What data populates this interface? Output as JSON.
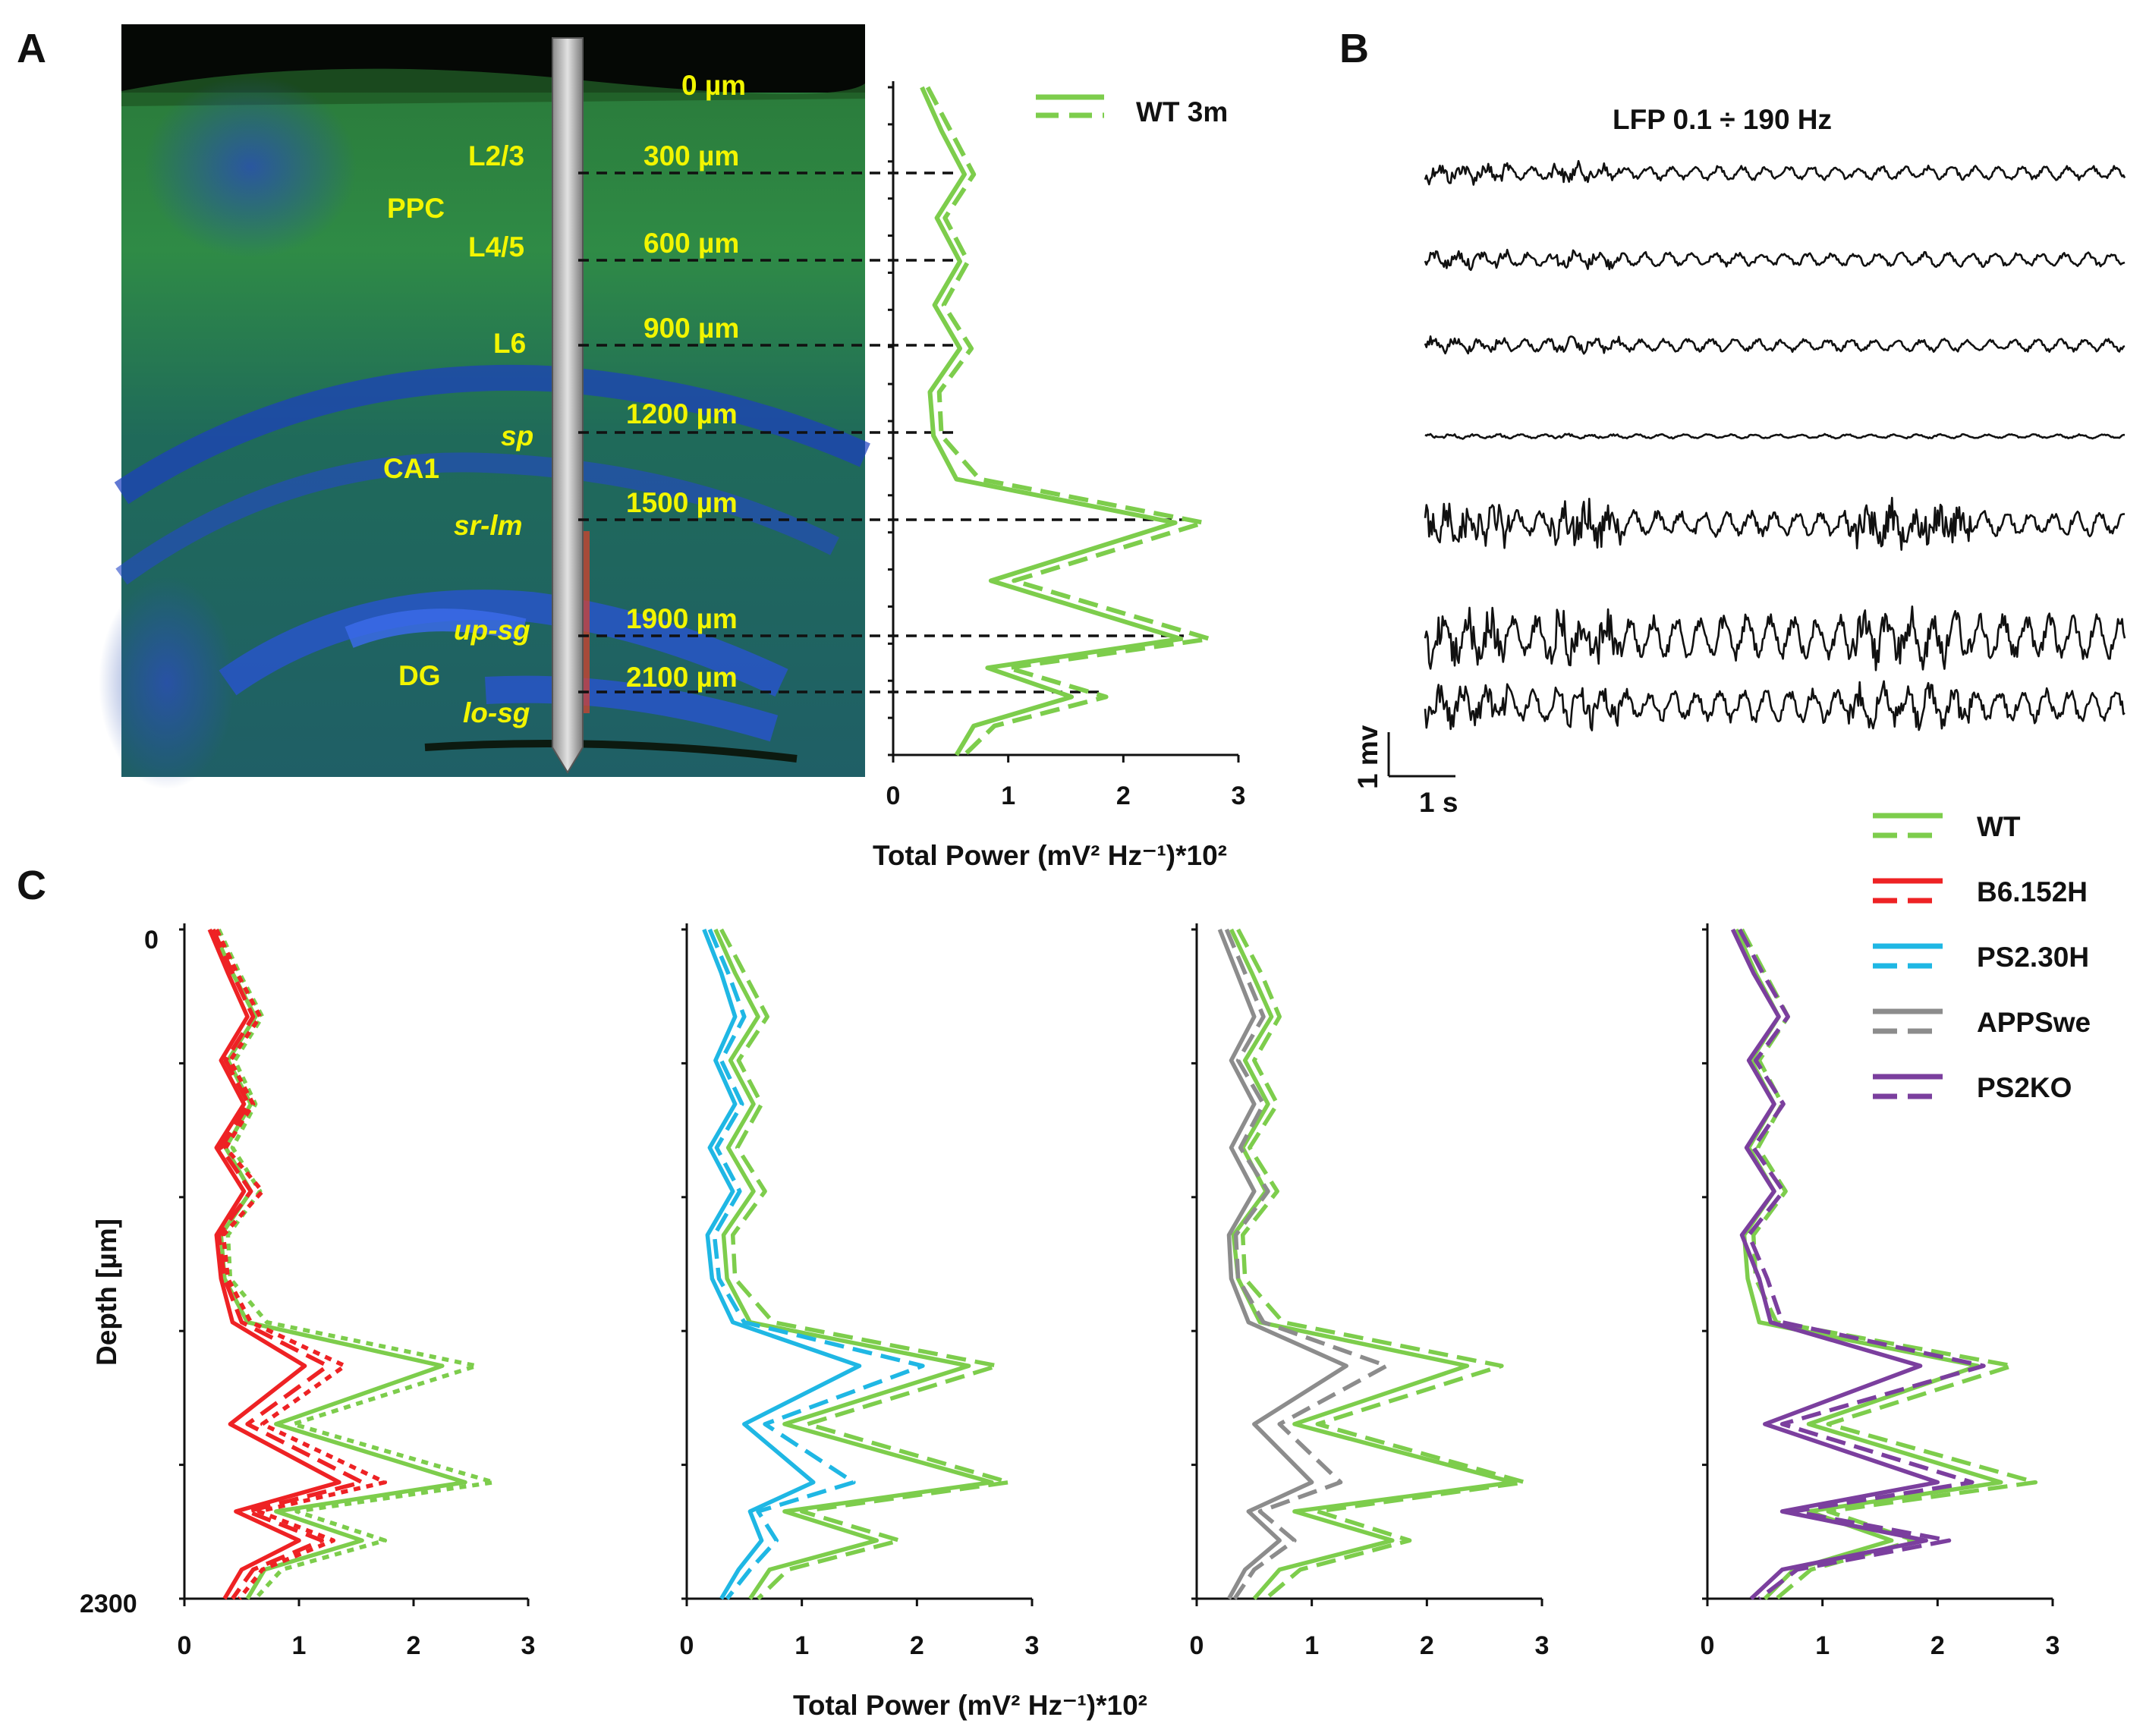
{
  "panels": {
    "a": "A",
    "b": "B",
    "c": "C"
  },
  "colors": {
    "WT": "#7dcd4c",
    "B6.152H": "#ee2224",
    "PS2.30H": "#1fb7e4",
    "APPSwe": "#8c8c8c",
    "PS2KO": "#7b3f9e"
  },
  "histology": {
    "region_labels": [
      "L2/3",
      "PPC",
      "L4/5",
      "L6",
      "CA1"
    ],
    "layer_labels_italic": [
      "sp",
      "sr-lm",
      "up-sg",
      "lo-sg"
    ],
    "dg_label": "DG",
    "depth_labels": [
      "0 µm",
      "300 µm",
      "600 µm",
      "900 µm",
      "1200 µm",
      "1500 µm",
      "1900 µm",
      "2100 µm"
    ]
  },
  "panel_b": {
    "title": "LFP 0.1 ÷ 190 Hz",
    "scale_v": "1 mv",
    "scale_t": "1 s"
  },
  "legend_a": {
    "label": "WT 3m"
  },
  "legend_c": [
    "WT",
    "B6.152H",
    "PS2.30H",
    "APPSwe",
    "PS2KO"
  ],
  "chart_data": [
    {
      "id": "panel-a",
      "type": "line",
      "xlabel": "Total Power (mV² Hz⁻¹)*10²",
      "xlim": [
        0,
        3
      ],
      "ylim": [
        0,
        2300
      ],
      "xticks": [
        "0",
        "1",
        "2",
        "3"
      ],
      "depth": [
        0,
        150,
        300,
        450,
        600,
        750,
        900,
        1050,
        1200,
        1350,
        1500,
        1700,
        1900,
        2000,
        2100,
        2200,
        2300
      ],
      "series": [
        {
          "name": "WT 3m",
          "style": "solid",
          "values": [
            0.25,
            0.42,
            0.62,
            0.38,
            0.58,
            0.36,
            0.58,
            0.32,
            0.35,
            0.55,
            2.45,
            0.85,
            2.5,
            0.82,
            1.55,
            0.7,
            0.55
          ]
        },
        {
          "name": "WT 3m",
          "style": "dashed",
          "values": [
            0.3,
            0.5,
            0.7,
            0.45,
            0.65,
            0.44,
            0.68,
            0.4,
            0.42,
            0.75,
            2.7,
            1.05,
            2.75,
            1.0,
            1.85,
            0.88,
            0.62
          ]
        }
      ]
    },
    {
      "id": "panel-c-1",
      "type": "line",
      "xlim": [
        0,
        3
      ],
      "ylim": [
        0,
        2300
      ],
      "xticks": [
        "0",
        "1",
        "2",
        "3"
      ],
      "depth": [
        0,
        150,
        300,
        450,
        600,
        750,
        900,
        1050,
        1200,
        1350,
        1500,
        1700,
        1900,
        2000,
        2100,
        2200,
        2300
      ],
      "series": [
        {
          "name": "WT",
          "style": "solid",
          "values": [
            0.25,
            0.42,
            0.62,
            0.38,
            0.58,
            0.36,
            0.58,
            0.32,
            0.35,
            0.55,
            2.25,
            0.8,
            2.45,
            0.8,
            1.55,
            0.7,
            0.55
          ]
        },
        {
          "name": "WT",
          "style": "dotted",
          "values": [
            0.3,
            0.48,
            0.68,
            0.44,
            0.62,
            0.42,
            0.66,
            0.38,
            0.4,
            0.72,
            2.55,
            0.95,
            2.7,
            0.98,
            1.75,
            0.85,
            0.62
          ]
        },
        {
          "name": "B6.152H",
          "style": "solid",
          "values": [
            0.22,
            0.38,
            0.55,
            0.32,
            0.52,
            0.28,
            0.52,
            0.28,
            0.32,
            0.42,
            1.05,
            0.4,
            1.35,
            0.45,
            1.0,
            0.5,
            0.35
          ]
        },
        {
          "name": "B6.152H",
          "style": "dashed",
          "values": [
            0.25,
            0.42,
            0.6,
            0.36,
            0.56,
            0.32,
            0.58,
            0.3,
            0.35,
            0.5,
            1.25,
            0.55,
            1.55,
            0.55,
            1.2,
            0.6,
            0.42
          ]
        },
        {
          "name": "B6.152H",
          "style": "dotted",
          "values": [
            0.28,
            0.46,
            0.66,
            0.4,
            0.6,
            0.36,
            0.68,
            0.34,
            0.38,
            0.58,
            1.4,
            0.68,
            1.75,
            0.65,
            1.3,
            0.68,
            0.48
          ]
        }
      ]
    },
    {
      "id": "panel-c-2",
      "type": "line",
      "xlim": [
        0,
        3
      ],
      "ylim": [
        0,
        2300
      ],
      "xticks": [
        "0",
        "1",
        "2",
        "3"
      ],
      "depth": [
        0,
        150,
        300,
        450,
        600,
        750,
        900,
        1050,
        1200,
        1350,
        1500,
        1700,
        1900,
        2000,
        2100,
        2200,
        2300
      ],
      "series": [
        {
          "name": "WT",
          "style": "solid",
          "values": [
            0.25,
            0.42,
            0.62,
            0.38,
            0.58,
            0.36,
            0.58,
            0.32,
            0.35,
            0.55,
            2.45,
            0.85,
            2.65,
            0.85,
            1.65,
            0.72,
            0.55
          ]
        },
        {
          "name": "WT",
          "style": "dashed",
          "values": [
            0.3,
            0.5,
            0.7,
            0.45,
            0.65,
            0.44,
            0.68,
            0.4,
            0.42,
            0.75,
            2.7,
            1.05,
            2.8,
            1.0,
            1.85,
            0.88,
            0.62
          ]
        },
        {
          "name": "PS2.30H",
          "style": "solid",
          "values": [
            0.15,
            0.3,
            0.42,
            0.25,
            0.42,
            0.2,
            0.4,
            0.18,
            0.22,
            0.4,
            1.5,
            0.5,
            1.1,
            0.55,
            0.65,
            0.45,
            0.3
          ]
        },
        {
          "name": "PS2.30H",
          "style": "dashed",
          "values": [
            0.2,
            0.36,
            0.5,
            0.3,
            0.48,
            0.26,
            0.46,
            0.24,
            0.28,
            0.5,
            2.05,
            0.68,
            1.45,
            0.62,
            0.78,
            0.55,
            0.35
          ]
        }
      ]
    },
    {
      "id": "panel-c-3",
      "type": "line",
      "xlim": [
        0,
        3
      ],
      "ylim": [
        0,
        2300
      ],
      "xticks": [
        "0",
        "1",
        "2",
        "3"
      ],
      "depth": [
        0,
        150,
        300,
        450,
        600,
        750,
        900,
        1050,
        1200,
        1350,
        1500,
        1700,
        1900,
        2000,
        2100,
        2200,
        2300
      ],
      "series": [
        {
          "name": "WT",
          "style": "solid",
          "values": [
            0.3,
            0.48,
            0.65,
            0.42,
            0.62,
            0.4,
            0.6,
            0.32,
            0.36,
            0.55,
            2.35,
            0.85,
            2.75,
            0.85,
            1.7,
            0.72,
            0.5
          ]
        },
        {
          "name": "WT",
          "style": "dashed",
          "values": [
            0.36,
            0.56,
            0.72,
            0.5,
            0.7,
            0.46,
            0.7,
            0.4,
            0.42,
            0.75,
            2.65,
            1.05,
            2.85,
            1.05,
            1.85,
            0.9,
            0.6
          ]
        },
        {
          "name": "APPSwe",
          "style": "solid",
          "values": [
            0.2,
            0.35,
            0.5,
            0.3,
            0.5,
            0.3,
            0.5,
            0.28,
            0.3,
            0.45,
            1.3,
            0.5,
            1.0,
            0.45,
            0.72,
            0.42,
            0.28
          ]
        },
        {
          "name": "APPSwe",
          "style": "dashed",
          "values": [
            0.26,
            0.42,
            0.58,
            0.36,
            0.58,
            0.38,
            0.62,
            0.34,
            0.36,
            0.58,
            1.65,
            0.72,
            1.25,
            0.55,
            0.85,
            0.5,
            0.33
          ]
        }
      ]
    },
    {
      "id": "panel-c-4",
      "type": "line",
      "xlim": [
        0,
        3
      ],
      "ylim": [
        0,
        2300
      ],
      "xticks": [
        "0",
        "1",
        "2",
        "3"
      ],
      "depth": [
        0,
        150,
        300,
        450,
        600,
        750,
        900,
        1050,
        1200,
        1350,
        1500,
        1700,
        1900,
        2000,
        2100,
        2200,
        2300
      ],
      "series": [
        {
          "name": "WT",
          "style": "solid",
          "values": [
            0.25,
            0.42,
            0.62,
            0.38,
            0.58,
            0.36,
            0.58,
            0.32,
            0.35,
            0.45,
            2.35,
            0.88,
            2.55,
            0.88,
            1.6,
            0.75,
            0.5
          ]
        },
        {
          "name": "WT",
          "style": "dashed",
          "values": [
            0.3,
            0.5,
            0.7,
            0.45,
            0.65,
            0.44,
            0.68,
            0.4,
            0.42,
            0.6,
            2.65,
            1.05,
            2.85,
            1.05,
            1.8,
            0.9,
            0.6
          ]
        },
        {
          "name": "PS2KO",
          "style": "solid",
          "values": [
            0.22,
            0.4,
            0.62,
            0.36,
            0.58,
            0.34,
            0.58,
            0.3,
            0.45,
            0.55,
            1.85,
            0.5,
            2.0,
            0.65,
            1.9,
            0.65,
            0.38
          ]
        },
        {
          "name": "PS2KO",
          "style": "dashed",
          "values": [
            0.28,
            0.48,
            0.7,
            0.42,
            0.66,
            0.4,
            0.66,
            0.36,
            0.52,
            0.65,
            2.4,
            0.65,
            2.3,
            0.75,
            2.1,
            0.78,
            0.45
          ]
        }
      ]
    }
  ],
  "panel_c_axis": {
    "ylabel": "Depth [µm]",
    "ytop": "0",
    "ybottom": "2300",
    "xlabel": "Total Power (mV² Hz⁻¹)*10²"
  }
}
